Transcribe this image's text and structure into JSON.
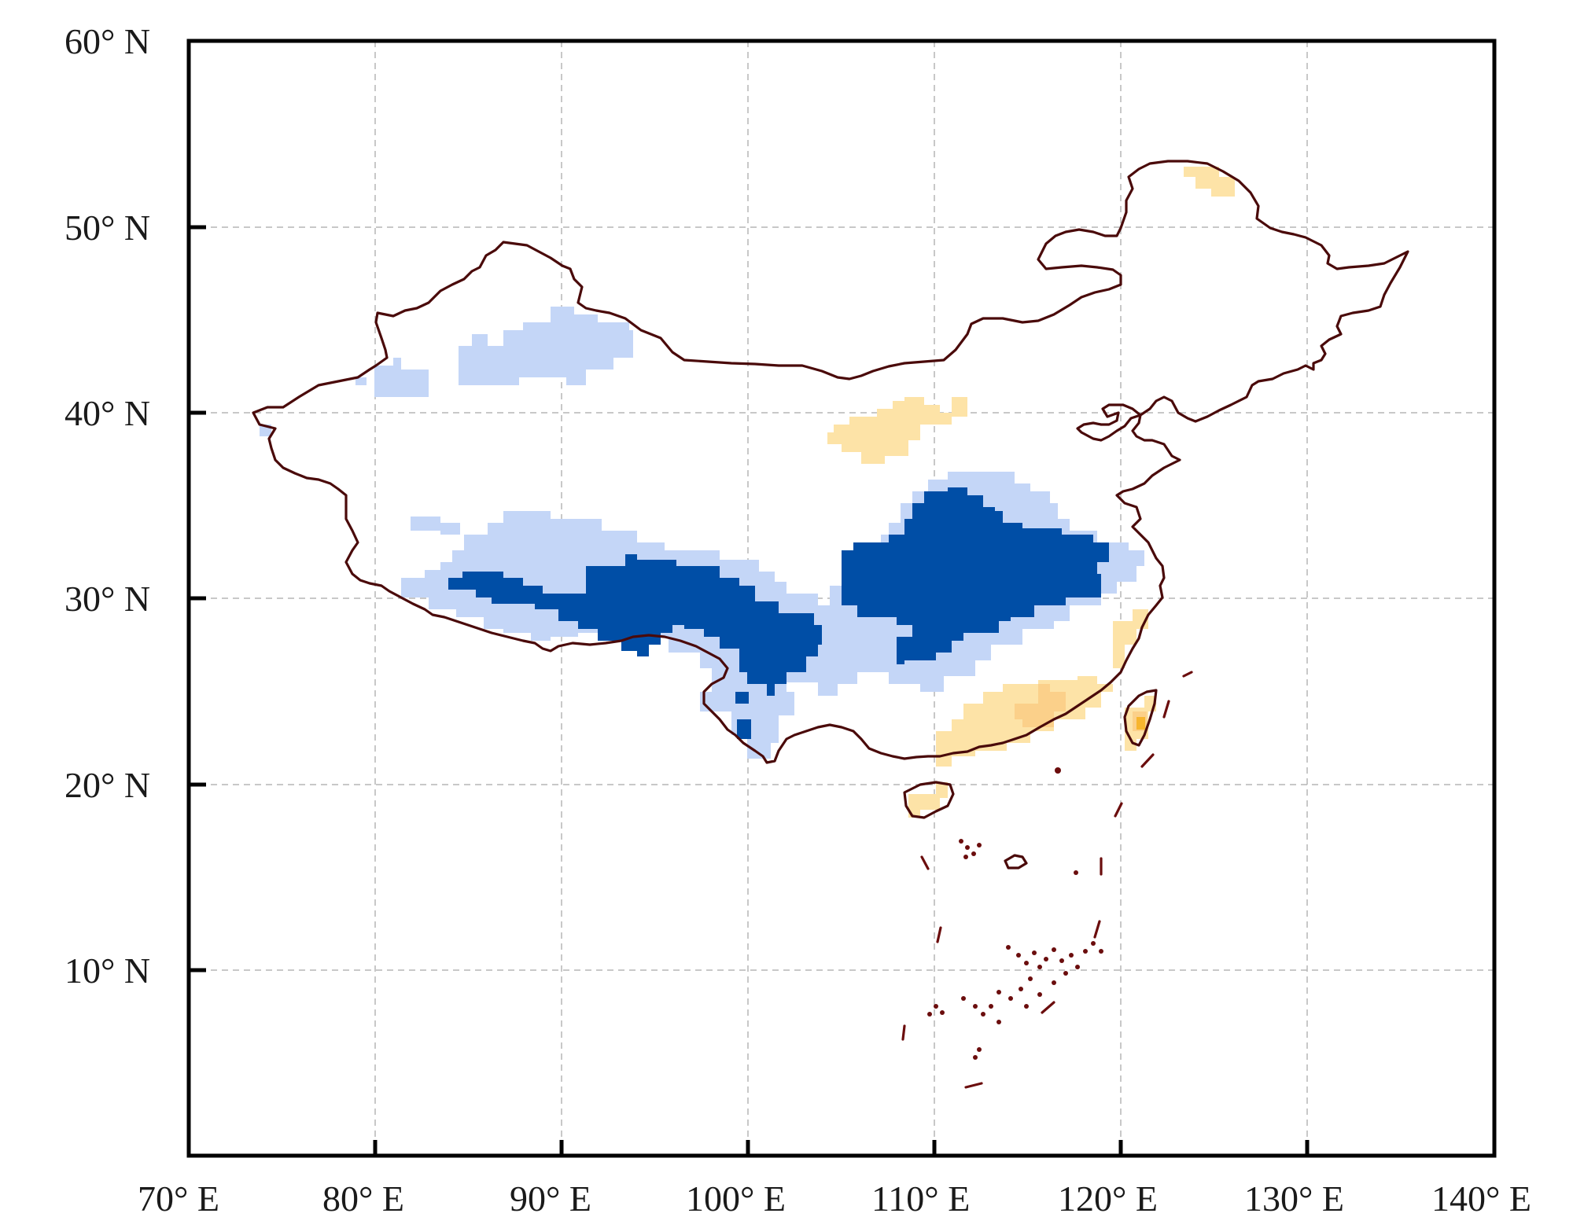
{
  "map": {
    "x_ticks": [
      "70° E",
      "80° E",
      "90° E",
      "100° E",
      "110° E",
      "120° E",
      "130° E",
      "140° E"
    ],
    "y_ticks": [
      "60° N",
      "50° N",
      "40° N",
      "30° N",
      "20° N",
      "10° N"
    ],
    "extent": {
      "lon_min": 70,
      "lon_max": 140,
      "lat_min": 0,
      "lat_max": 60
    },
    "grid": true,
    "colors": {
      "light_blue": "#c4d6f7",
      "dark_blue": "#004ea6",
      "light_orange": "#fde3a7",
      "mid_orange": "#fbd08a",
      "deep_orange": "#f7b52e",
      "border": "#4a0a0a"
    }
  }
}
